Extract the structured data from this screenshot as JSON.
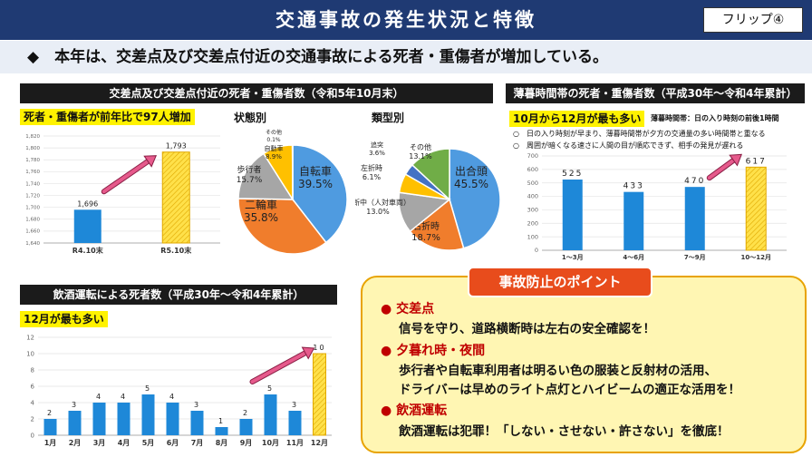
{
  "header": {
    "title": "交通事故の発生状況と特徴",
    "flip_label": "フリップ④",
    "subtitle": "◆　本年は、交差点及び交差点付近の交通事故による死者・重傷者が増加している。"
  },
  "panel_intersection": {
    "header": "交差点及び交差点付近の死者・重傷者数（令和5年10月末）",
    "highlight": "死者・重傷者が前年比で97人増加",
    "state_label": "状態別",
    "type_label": "類型別"
  },
  "panel_dusk": {
    "header": "薄暮時間帯の死者・重傷者数（平成30年～令和4年累計）",
    "highlight": "10月から12月が最も多い",
    "note": "薄暮時間帯：日の入り時刻の前後1時間",
    "bullet1": "○　日の入り時刻が早まり、薄暮時間帯が夕方の交通量の多い時間帯と重なる",
    "bullet2": "○　周囲が暗くなる速さに人間の目が順応できず、相手の発見が遅れる"
  },
  "panel_drunk": {
    "header": "飲酒運転による死者数（平成30年～令和4年累計）",
    "highlight": "12月が最も多い"
  },
  "points": {
    "title": "事故防止のポイント",
    "items": [
      {
        "head": "● 交差点",
        "body": "信号を守り、道路横断時は左右の安全確認を！"
      },
      {
        "head": "● 夕暮れ時・夜間",
        "body": "歩行者や自転車利用者は明るい色の服装と反射材の活用、",
        "body2": "ドライバーは早めのライト点灯とハイビームの適正な活用を！"
      },
      {
        "head": "● 飲酒運転",
        "body": "飲酒運転は犯罪！「しない・させない・許さない」を徹底！"
      }
    ]
  },
  "colors": {
    "navy": "#1f3a73",
    "bar_blue": "#1e88d8",
    "bar_yellow": "#ffe14a",
    "arrow_pink": "#e65a8c"
  },
  "chart_data": [
    {
      "type": "bar",
      "categories": [
        "R4.10末",
        "R5.10末"
      ],
      "values": [
        1696,
        1793
      ],
      "ylim": [
        1640,
        1820
      ],
      "yticks": [
        "1,820",
        "1,800",
        "1,780",
        "1,760",
        "1,740",
        "1,720",
        "1,700",
        "1,680",
        "1,660",
        "1,640"
      ],
      "value_labels": [
        "1,696",
        "1,793"
      ]
    },
    {
      "type": "pie",
      "title": "状態別",
      "slices": [
        {
          "name": "自転車",
          "value": 39.5,
          "label": "39.5%",
          "color": "#4f9be0"
        },
        {
          "name": "二輪車",
          "value": 35.8,
          "label": "35.8%",
          "color": "#f07d2c"
        },
        {
          "name": "歩行者",
          "value": 15.7,
          "label": "15.7%",
          "color": "#a6a6a6"
        },
        {
          "name": "自動車",
          "value": 8.9,
          "label": "8.9%",
          "color": "#ffc000"
        },
        {
          "name": "その他",
          "value": 0.1,
          "label": "0.1%",
          "color": "#70ad47"
        }
      ]
    },
    {
      "type": "pie",
      "title": "類型別",
      "slices": [
        {
          "name": "出合頭",
          "value": 45.5,
          "label": "45.5%",
          "color": "#4f9be0"
        },
        {
          "name": "右折時",
          "value": 18.7,
          "label": "18.7%",
          "color": "#f07d2c"
        },
        {
          "name": "横断中（人対車両）",
          "value": 13.0,
          "label": "13.0%",
          "color": "#a6a6a6"
        },
        {
          "name": "左折時",
          "value": 6.1,
          "label": "6.1%",
          "color": "#ffc000"
        },
        {
          "name": "追突",
          "value": 3.6,
          "label": "3.6%",
          "color": "#4472c4"
        },
        {
          "name": "その他",
          "value": 13.1,
          "label": "13.1%",
          "color": "#70ad47"
        }
      ]
    },
    {
      "type": "bar",
      "categories": [
        "1～3月",
        "4～6月",
        "7～9月",
        "10～12月"
      ],
      "values": [
        525,
        433,
        470,
        617
      ],
      "ylim": [
        0,
        700
      ],
      "yticks": [
        "700",
        "600",
        "500",
        "400",
        "300",
        "200",
        "100",
        "0"
      ]
    },
    {
      "type": "bar",
      "categories": [
        "1月",
        "2月",
        "3月",
        "4月",
        "5月",
        "6月",
        "7月",
        "8月",
        "9月",
        "10月",
        "11月",
        "12月"
      ],
      "values": [
        2,
        3,
        4,
        4,
        5,
        4,
        3,
        1,
        2,
        5,
        3,
        10
      ],
      "ylim": [
        0,
        12
      ],
      "yticks": [
        "12",
        "10",
        "8",
        "6",
        "4",
        "2",
        "0"
      ]
    }
  ]
}
